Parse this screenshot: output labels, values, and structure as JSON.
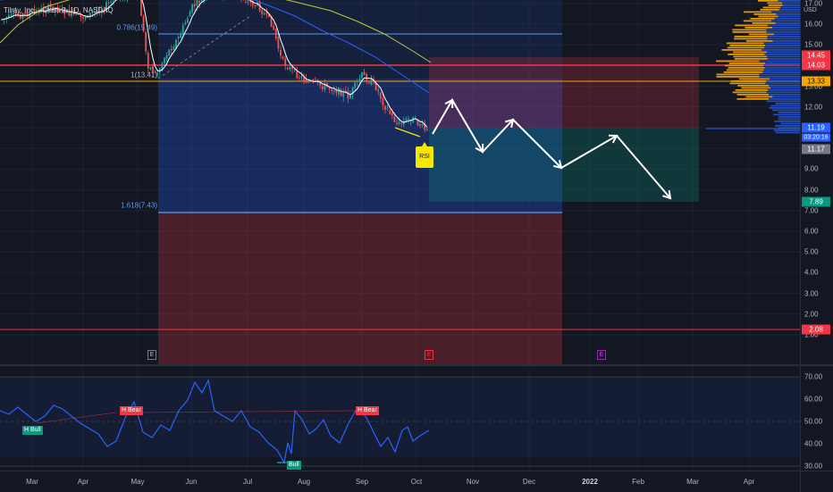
{
  "title": "Tilray, Inc. - Class 2, 1D, NASDAQ",
  "currency": "USD",
  "price_ticks": [
    "17.00",
    "16.00",
    "15.00",
    "14.00",
    "13.00",
    "12.00",
    "11.00",
    "10.00",
    "9.00",
    "8.00",
    "7.00",
    "6.00",
    "5.00",
    "4.00",
    "3.00",
    "2.00",
    "1.00"
  ],
  "price_labels": {
    "red_line_1": "14.45",
    "red_line_2": "14.03",
    "orange_line": "13.33",
    "last_price": "11.19",
    "countdown": "03:20:16",
    "prev_close": "11.17",
    "target": "7.89",
    "low_line": "2.08"
  },
  "fib_labels": {
    "f0786": "0.786(15.49)",
    "f1": "1(13.41)",
    "f1618": "1.618(7.43)"
  },
  "rsi_ticks": [
    "70.00",
    "60.00",
    "50.00",
    "40.00",
    "30.00"
  ],
  "time_ticks": [
    {
      "label": "Mar",
      "bold": false
    },
    {
      "label": "Apr",
      "bold": false
    },
    {
      "label": "May",
      "bold": false
    },
    {
      "label": "Jun",
      "bold": false
    },
    {
      "label": "Jul",
      "bold": false
    },
    {
      "label": "Aug",
      "bold": false
    },
    {
      "label": "Sep",
      "bold": false
    },
    {
      "label": "Oct",
      "bold": false
    },
    {
      "label": "Nov",
      "bold": false
    },
    {
      "label": "Dec",
      "bold": false
    },
    {
      "label": "2022",
      "bold": true
    },
    {
      "label": "Feb",
      "bold": false
    },
    {
      "label": "Mar",
      "bold": false
    },
    {
      "label": "Apr",
      "bold": false
    }
  ],
  "annotation": "RSI",
  "divergence_labels": {
    "h_bull": "H Bull",
    "h_bear_1": "H Bear",
    "h_bear_2": "H Bear",
    "bull": "Bull"
  },
  "earnings_markers": [
    "E",
    "E",
    "E"
  ],
  "colors": {
    "background": "#131722",
    "up_candle": "#26a69a",
    "down_candle": "#ef5350",
    "sma_short": "#ffffff",
    "sma_mid": "#2962ff",
    "sma_long": "#c0ca33",
    "rsi_line": "#2962ff",
    "fib_line": "#5b9cf6",
    "red_level": "#f23645",
    "orange_level": "#f7a600",
    "target_label": "#089981",
    "rsi_badge": "#f7e600",
    "clock_label": "#2962ff"
  }
}
